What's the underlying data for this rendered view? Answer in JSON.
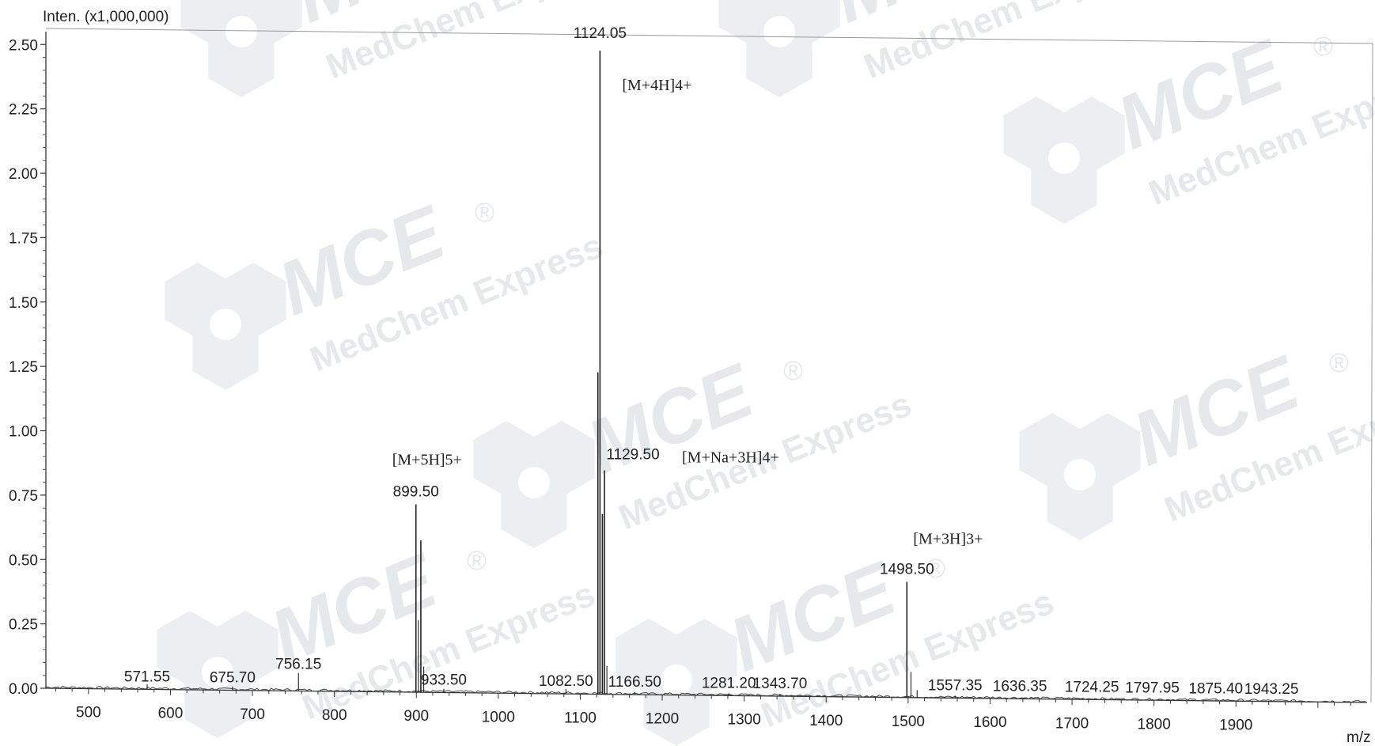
{
  "chart_data": {
    "type": "line",
    "title": "",
    "ylabel": "Inten. (x1,000,000)",
    "xlabel": "m/z",
    "xlim": [
      448,
      2060
    ],
    "ylim": [
      0,
      2.55
    ],
    "x_ticks": [
      500,
      600,
      700,
      800,
      900,
      1000,
      1100,
      1200,
      1300,
      1400,
      1500,
      1600,
      1700,
      1800,
      1900
    ],
    "x_tick_labels": [
      "500",
      "600",
      "700",
      "800",
      "900",
      "1000",
      "1100",
      "1200",
      "1300",
      "1400",
      "1500",
      "1600",
      "1700",
      "1800",
      "1900"
    ],
    "y_ticks": [
      0,
      0.25,
      0.5,
      0.75,
      1.0,
      1.25,
      1.5,
      1.75,
      2.0,
      2.25,
      2.5
    ],
    "y_tick_labels": [
      "0.00",
      "0.25",
      "0.50",
      "0.75",
      "1.00",
      "1.25",
      "1.50",
      "1.75",
      "2.00",
      "2.25",
      "2.50"
    ],
    "grid": false,
    "peaks": [
      {
        "mz": 571.55,
        "intensity": 0.02,
        "label": "571.55"
      },
      {
        "mz": 675.7,
        "intensity": 0.015,
        "label": "675.70"
      },
      {
        "mz": 756.15,
        "intensity": 0.07,
        "label": "756.15"
      },
      {
        "mz": 899.5,
        "intensity": 0.73,
        "label": "899.50"
      },
      {
        "mz": 902.5,
        "intensity": 0.28,
        "label": ""
      },
      {
        "mz": 905.5,
        "intensity": 0.59,
        "label": ""
      },
      {
        "mz": 909.0,
        "intensity": 0.1,
        "label": ""
      },
      {
        "mz": 933.5,
        "intensity": 0.015,
        "label": "933.50"
      },
      {
        "mz": 1082.5,
        "intensity": 0.02,
        "label": "1082.50"
      },
      {
        "mz": 1121.5,
        "intensity": 1.25,
        "label": ""
      },
      {
        "mz": 1124.05,
        "intensity": 2.5,
        "label": "1124.05"
      },
      {
        "mz": 1127.0,
        "intensity": 0.7,
        "label": ""
      },
      {
        "mz": 1129.5,
        "intensity": 0.87,
        "label": "1129.50"
      },
      {
        "mz": 1132.5,
        "intensity": 0.11,
        "label": ""
      },
      {
        "mz": 1166.5,
        "intensity": 0.01,
        "label": "1166.50"
      },
      {
        "mz": 1281.2,
        "intensity": 0.01,
        "label": "1281.20"
      },
      {
        "mz": 1343.7,
        "intensity": 0.01,
        "label": "1343.70"
      },
      {
        "mz": 1498.5,
        "intensity": 0.45,
        "label": "1498.50"
      },
      {
        "mz": 1503.5,
        "intensity": 0.1,
        "label": ""
      },
      {
        "mz": 1511.0,
        "intensity": 0.03,
        "label": ""
      },
      {
        "mz": 1557.35,
        "intensity": 0.01,
        "label": "1557.35"
      },
      {
        "mz": 1636.35,
        "intensity": 0.005,
        "label": "1636.35"
      },
      {
        "mz": 1724.25,
        "intensity": 0.005,
        "label": "1724.25"
      },
      {
        "mz": 1797.95,
        "intensity": 0.005,
        "label": "1797.95"
      },
      {
        "mz": 1875.4,
        "intensity": 0.005,
        "label": "1875.40"
      },
      {
        "mz": 1943.25,
        "intensity": 0.005,
        "label": "1943.25"
      }
    ],
    "annotations": [
      {
        "text": "[M+4H]4+",
        "mz": 1124.05
      },
      {
        "text": "[M+Na+3H]4+",
        "mz": 1129.5
      },
      {
        "text": "[M+5H]5+",
        "mz": 899.5
      },
      {
        "text": "[M+3H]3+",
        "mz": 1498.5
      }
    ]
  },
  "watermark": {
    "brand": "MCE",
    "tagline": "MedChem Express",
    "mark": "®"
  }
}
